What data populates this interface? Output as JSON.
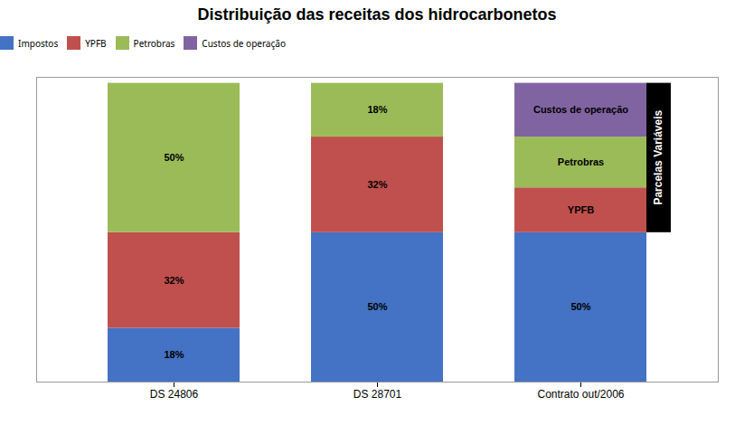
{
  "chart_data": {
    "type": "bar",
    "title": "Distribuição das receitas dos hidrocarbonetos",
    "categories": [
      "DS 24806",
      "DS 28701",
      "Contrato out/2006"
    ],
    "stacked": true,
    "series": [
      {
        "name": "Impostos",
        "color": "#4472C4",
        "values": [
          18,
          50,
          50
        ],
        "value_labels": [
          "18%",
          "50%",
          "50%"
        ]
      },
      {
        "name": "YPFB",
        "color": "#C0504D",
        "values": [
          32,
          32,
          15
        ],
        "value_labels": [
          "32%",
          "32%",
          "YPFB"
        ]
      },
      {
        "name": "Petrobras",
        "color": "#9BBB59",
        "values": [
          50,
          18,
          17
        ],
        "value_labels": [
          "50%",
          "18%",
          "Petrobras"
        ]
      },
      {
        "name": "Custos de operação",
        "color": "#8064A2",
        "values": [
          0,
          0,
          18
        ],
        "value_labels": [
          null,
          null,
          "Custos de operação"
        ]
      }
    ],
    "ylim": [
      0,
      102
    ],
    "tick_labels": "x",
    "grid": false,
    "data_labels": true,
    "legend": "top",
    "annotations": [
      {
        "text": "Parcelas Variáveis",
        "x": "Contrato out/2006",
        "y": [
          50,
          100
        ]
      }
    ]
  }
}
